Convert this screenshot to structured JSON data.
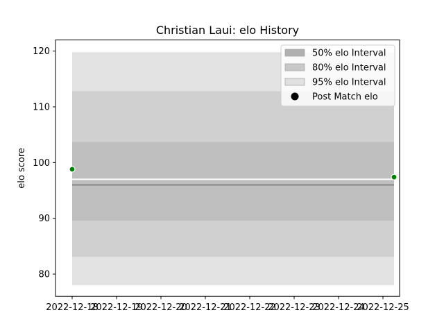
{
  "chart_data": {
    "type": "line",
    "title": "Christian Laui: elo History",
    "xlabel": "",
    "ylabel": "elo score",
    "x_ticks": [
      "2022-12-18",
      "2022-12-19",
      "2022-12-20",
      "2022-12-21",
      "2022-12-22",
      "2022-12-23",
      "2022-12-24",
      "2022-12-25"
    ],
    "xlim": [
      "2022-12-17T15:00",
      "2022-12-25T09:00"
    ],
    "ylim": [
      76,
      122
    ],
    "y_ticks": [
      80,
      90,
      100,
      110,
      120
    ],
    "grid": false,
    "legend_position": "top-right",
    "bands": [
      {
        "name": "95% elo Interval",
        "x": [
          "2022-12-18",
          "2022-12-25T06:00"
        ],
        "lower": 78.0,
        "upper": 119.8,
        "color": "#e3e3e3"
      },
      {
        "name": "80% elo Interval",
        "x": [
          "2022-12-18",
          "2022-12-25T06:00"
        ],
        "lower": 83.1,
        "upper": 112.8,
        "color": "#d0d0d0"
      },
      {
        "name": "50% elo Interval",
        "x": [
          "2022-12-18",
          "2022-12-25T06:00"
        ],
        "lower": 89.6,
        "upper": 103.7,
        "color": "#bfbfbf"
      }
    ],
    "lines": [
      {
        "x": [
          "2022-12-18",
          "2022-12-25T06:00"
        ],
        "y": [
          97.0,
          97.0
        ],
        "color": "#ffffff"
      },
      {
        "x": [
          "2022-12-18",
          "2022-12-25T06:00"
        ],
        "y": [
          96.0,
          96.0
        ],
        "color": "#888888"
      }
    ],
    "series": [
      {
        "name": "Post Match elo",
        "x": [
          "2022-12-18",
          "2022-12-25T06:00"
        ],
        "y": [
          98.8,
          97.4
        ],
        "color": "#008000"
      }
    ],
    "legend": [
      {
        "label": "50% elo Interval",
        "kind": "patch",
        "color": "#b0b0b0"
      },
      {
        "label": "80% elo Interval",
        "kind": "patch",
        "color": "#c8c8c8"
      },
      {
        "label": "95% elo Interval",
        "kind": "patch",
        "color": "#e0e0e0"
      },
      {
        "label": "Post Match elo",
        "kind": "marker",
        "color": "#000000"
      }
    ]
  }
}
